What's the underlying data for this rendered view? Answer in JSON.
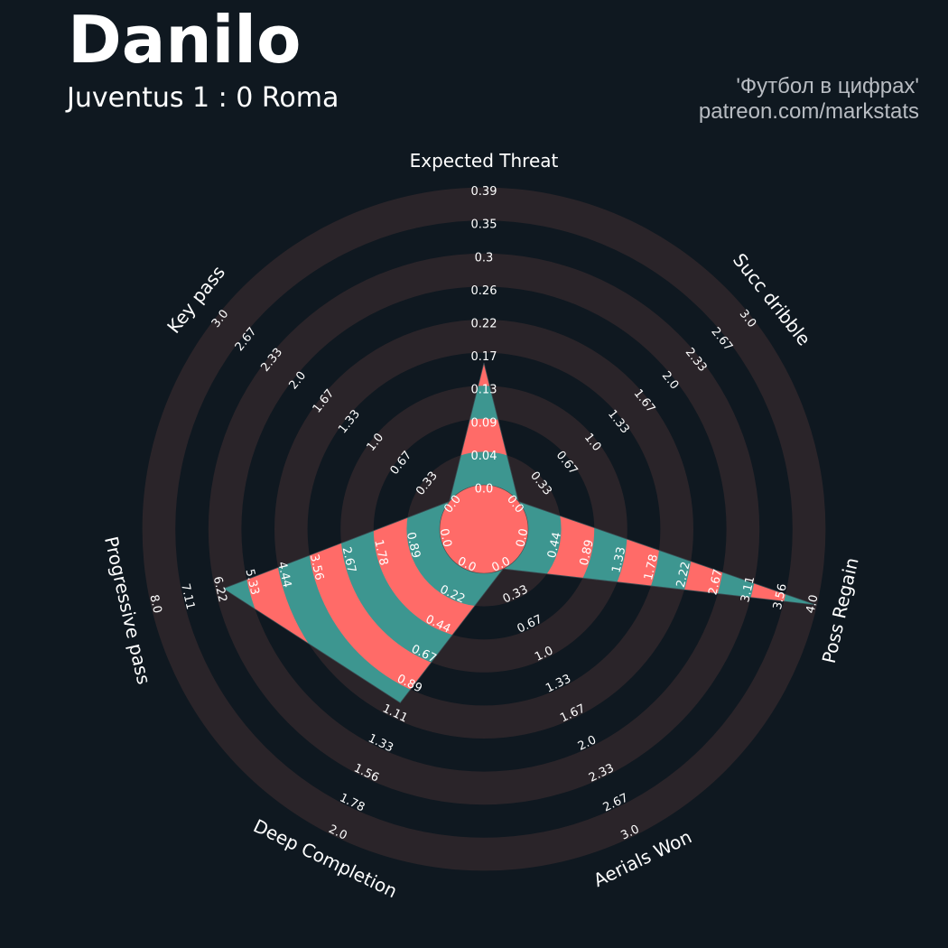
{
  "header": {
    "title": "Danilo",
    "subtitle": "Juventus 1 : 0 Roma",
    "credit_line1": "'Футбол в цифрах'",
    "credit_line2": "patreon.com/markstats"
  },
  "colors": {
    "background": "#0f1820",
    "ring": "#2a2429",
    "shape_primary": "#3d9690",
    "shape_alternate": "#ff6b68",
    "center_circle": "#ff6b68",
    "text": "#ffffff",
    "credit_text": "#b8bcc2"
  },
  "chart_data": {
    "type": "radar",
    "title": "Danilo",
    "subtitle": "Juventus 1 : 0 Roma",
    "grid": true,
    "axes": [
      {
        "label": "Expected Threat",
        "value": 0.16,
        "range": [
          0.0,
          0.39
        ],
        "ticks": [
          "0.0",
          "0.04",
          "0.09",
          "0.13",
          "0.17",
          "0.22",
          "0.26",
          "0.3",
          "0.35",
          "0.39"
        ]
      },
      {
        "label": "Succ dribble",
        "value": 0.0,
        "range": [
          0.0,
          3.0
        ],
        "ticks": [
          "0.0",
          "0.33",
          "0.67",
          "1.0",
          "1.33",
          "1.67",
          "2.0",
          "2.33",
          "2.67",
          "3.0"
        ]
      },
      {
        "label": "Poss Regain",
        "value": 4.0,
        "range": [
          0.0,
          4.0
        ],
        "ticks": [
          "0.0",
          "0.44",
          "0.89",
          "1.33",
          "1.78",
          "2.22",
          "2.67",
          "3.11",
          "3.56",
          "4.0"
        ]
      },
      {
        "label": "Aerials Won",
        "value": 0.0,
        "range": [
          0.0,
          3.0
        ],
        "ticks": [
          "0.0",
          "0.33",
          "0.67",
          "1.0",
          "1.33",
          "1.67",
          "2.0",
          "2.33",
          "2.67",
          "3.0"
        ]
      },
      {
        "label": "Deep Completion",
        "value": 1.0,
        "range": [
          0.0,
          2.0
        ],
        "ticks": [
          "0.0",
          "0.22",
          "0.44",
          "0.67",
          "0.89",
          "1.11",
          "1.33",
          "1.56",
          "1.78",
          "2.0"
        ]
      },
      {
        "label": "Progressive pass",
        "value": 6.0,
        "range": [
          0.0,
          8.0
        ],
        "ticks": [
          "0.0",
          "0.89",
          "1.78",
          "2.67",
          "3.56",
          "4.44",
          "5.33",
          "6.22",
          "7.11",
          "8.0"
        ]
      },
      {
        "label": "Key pass",
        "value": 0.0,
        "range": [
          0.0,
          3.0
        ],
        "ticks": [
          "0.0",
          "0.33",
          "0.67",
          "1.0",
          "1.33",
          "1.67",
          "2.0",
          "2.33",
          "2.67",
          "3.0"
        ]
      }
    ]
  }
}
